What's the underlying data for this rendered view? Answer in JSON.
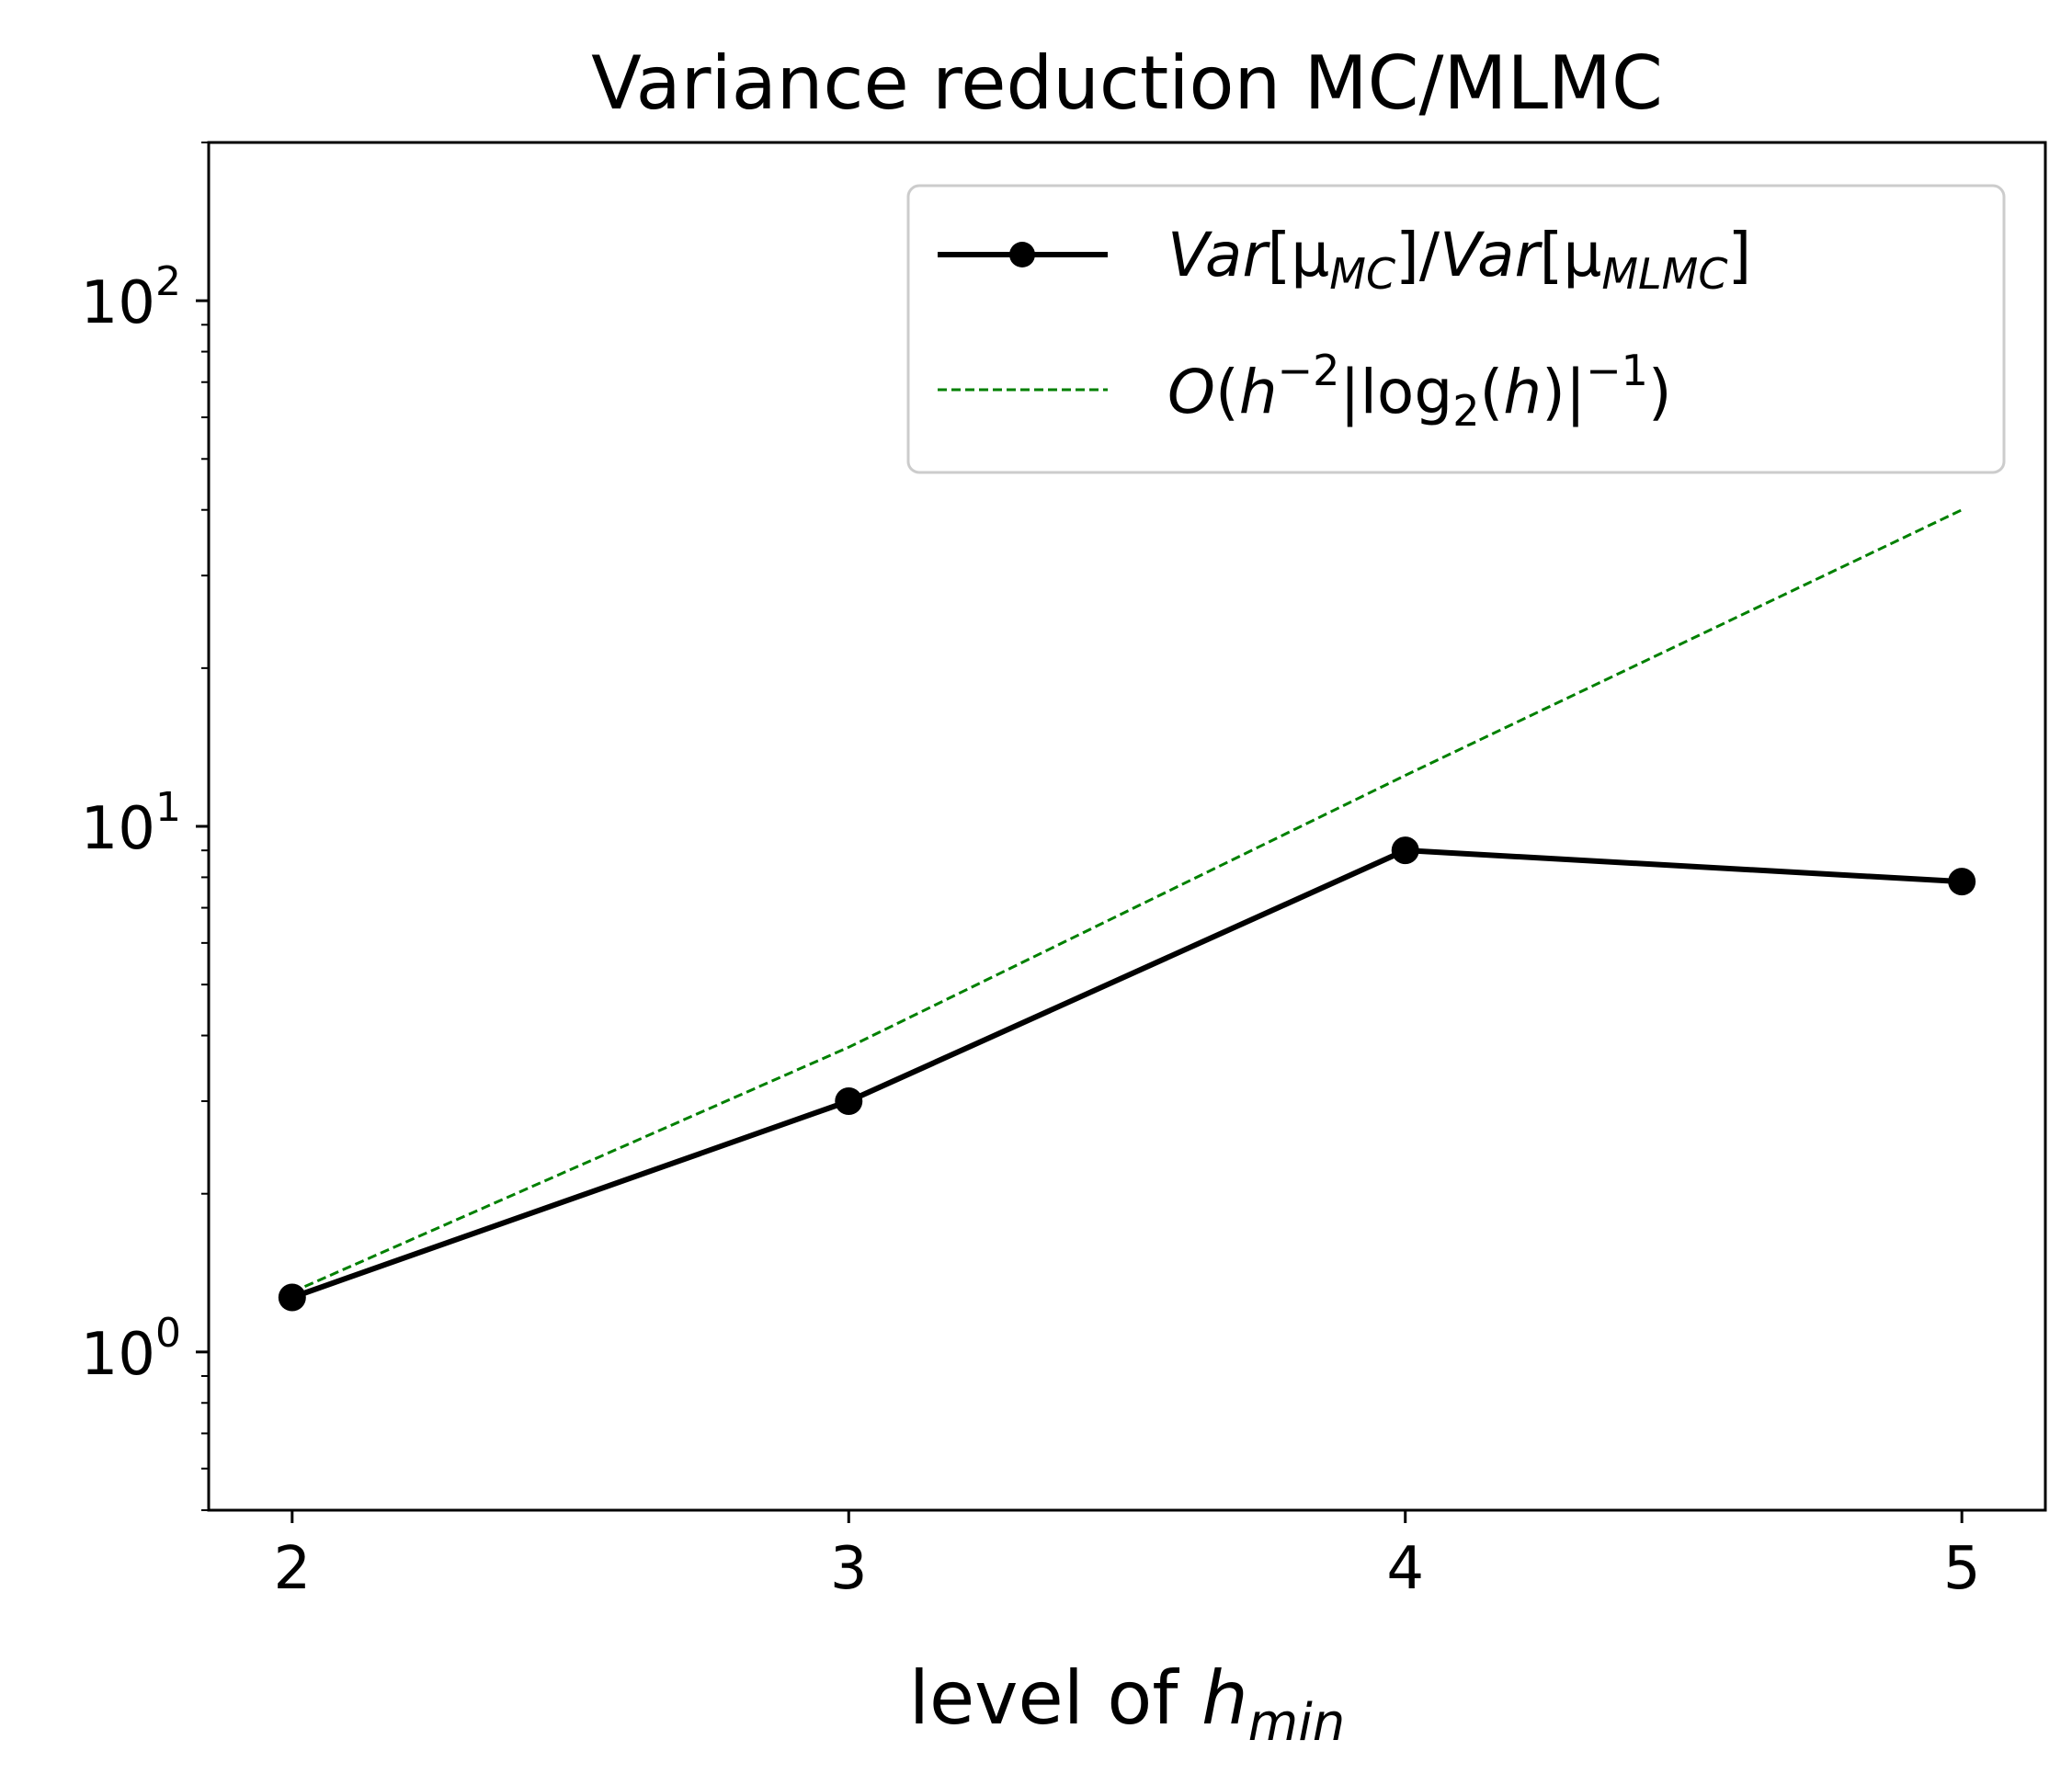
{
  "chart_data": {
    "type": "line",
    "title": "Variance reduction MC/MLMC",
    "xlabel": {
      "main": "level of ",
      "var": "h",
      "sub": "min"
    },
    "ylabel": "",
    "yscale": "log",
    "xlim": [
      1.85,
      5.15
    ],
    "ylim": [
      0.5,
      200
    ],
    "x_ticks": [
      2,
      3,
      4,
      5
    ],
    "y_ticks": [
      {
        "value": 1,
        "base": "10",
        "exp": "0"
      },
      {
        "value": 10,
        "base": "10",
        "exp": "1"
      },
      {
        "value": 100,
        "base": "10",
        "exp": "2"
      }
    ],
    "series": [
      {
        "name": "Var[μMC]/Var[μMLMC]",
        "label_parts": {
          "a": "Var",
          "b": "[μ",
          "c": "MC",
          "d": "]/",
          "e": "Var",
          "f": "[μ",
          "g": "MLMC",
          "h": "]"
        },
        "color": "#000000",
        "style": "solid-marker",
        "x": [
          2,
          3,
          4,
          5
        ],
        "y": [
          1.27,
          3.0,
          9.0,
          7.85
        ]
      },
      {
        "name": "O(h^-2|log2(h)|^-1)",
        "label_parts": {
          "a": "O",
          "b": "(",
          "c": "h",
          "d": "−2",
          "e": "|log",
          "f": "2",
          "g": "(",
          "h": "h",
          "i": ")|",
          "j": "−1",
          "k": ")"
        },
        "color": "#008000",
        "style": "dashed",
        "x": [
          2,
          3,
          4,
          5
        ],
        "y": [
          1.3,
          3.8,
          12.5,
          40.0
        ]
      }
    ],
    "legend": "top-right",
    "grid": false
  }
}
